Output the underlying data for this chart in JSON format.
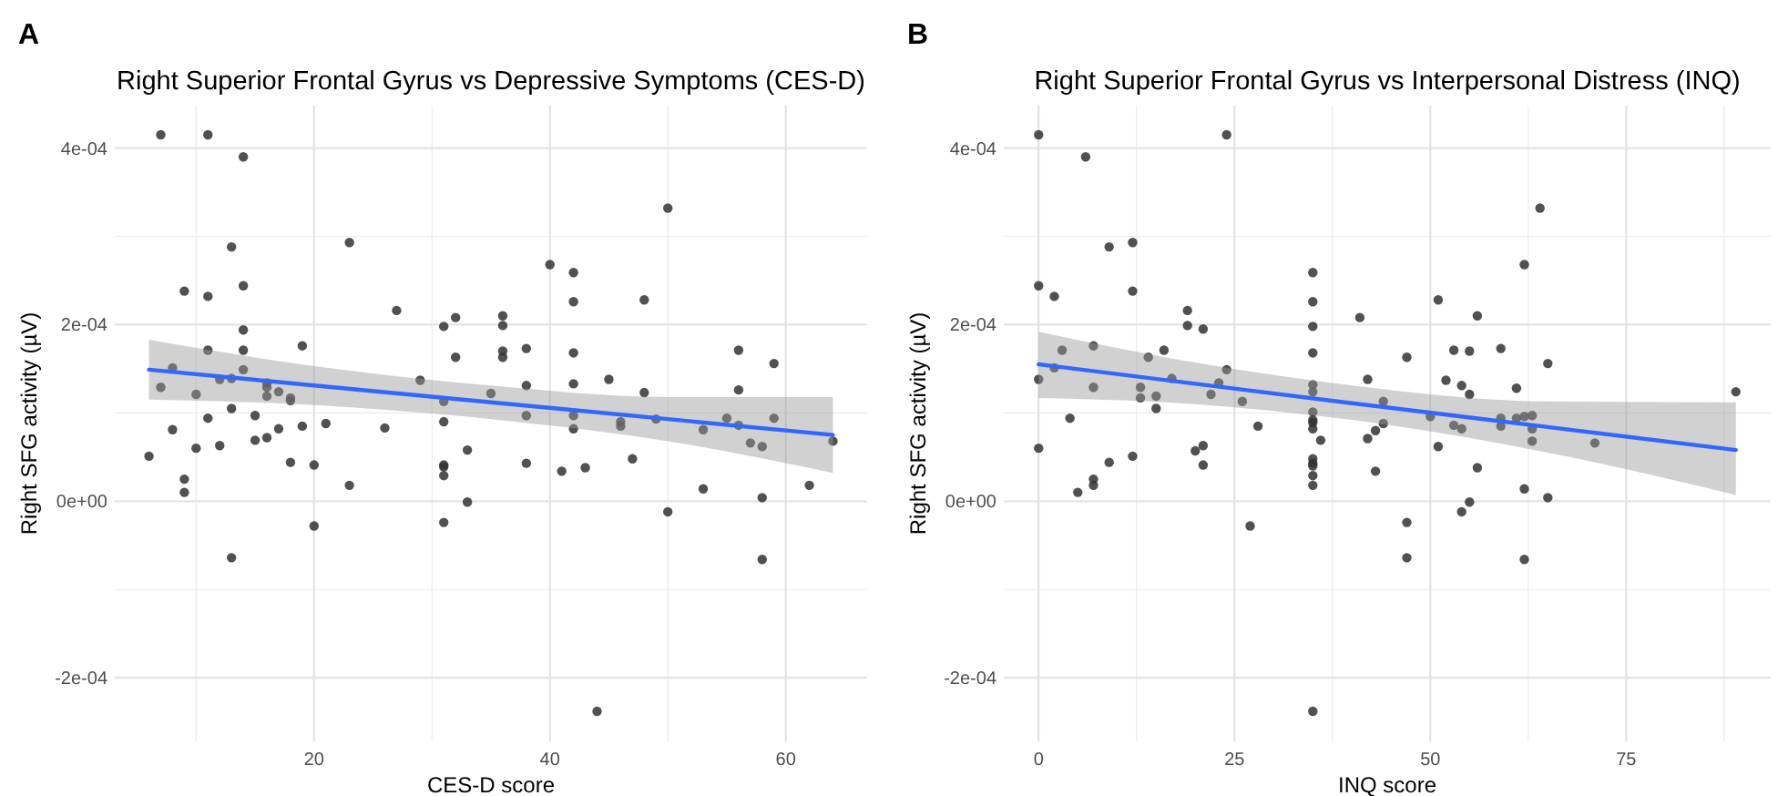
{
  "chart_data": [
    {
      "type": "scatter",
      "title": "Right Superior Frontal Gyrus vs Depressive Symptoms (CES-D)",
      "xlabel": "CES-D score",
      "ylabel": "Right SFG activity (µV)",
      "annotations": [
        "A"
      ],
      "grid": true,
      "xlim": [
        3.1,
        66.9
      ],
      "xticks": [
        20,
        40,
        60
      ],
      "ylim": [
        -0.000272,
        0.000448
      ],
      "yticks": [
        {
          "value": -0.0002,
          "label": "-2e-04"
        },
        {
          "value": 0,
          "label": "0e+00"
        },
        {
          "value": 0.0002,
          "label": "2e-04"
        },
        {
          "value": 0.0004,
          "label": "4e-04"
        }
      ],
      "series": [
        {
          "marker": "circle",
          "color": "#333333",
          "x": [
            7,
            11,
            14,
            50,
            13,
            23,
            40,
            42,
            9,
            11,
            14,
            42,
            48,
            27,
            36,
            36,
            31,
            32,
            14,
            11,
            14,
            19,
            32,
            36,
            36,
            38,
            42,
            56,
            59,
            8,
            14,
            7,
            12,
            13,
            16,
            16,
            17,
            18,
            18,
            10,
            16,
            29,
            31,
            35,
            38,
            42,
            45,
            48,
            56,
            13,
            11,
            15,
            8,
            17,
            19,
            21,
            26,
            31,
            38,
            42,
            42,
            46,
            46,
            49,
            55,
            56,
            53,
            59,
            57,
            58,
            64,
            6,
            10,
            12,
            15,
            16,
            18,
            20,
            33,
            38,
            41,
            43,
            47,
            31,
            31,
            31,
            9,
            9,
            23,
            53,
            58,
            62,
            33,
            31,
            20,
            50,
            13,
            58,
            44
          ],
          "values": [
            0.000415,
            0.000415,
            0.00039,
            0.000332,
            0.000288,
            0.000293,
            0.000268,
            0.000259,
            0.000238,
            0.000232,
            0.000244,
            0.000226,
            0.000228,
            0.000216,
            0.00021,
            0.000199,
            0.000198,
            0.000208,
            0.000194,
            0.000171,
            0.000171,
            0.000176,
            0.000163,
            0.00017,
            0.000163,
            0.000173,
            0.000168,
            0.000171,
            0.000156,
            0.000151,
            0.000149,
            0.000129,
            0.000138,
            0.000139,
            0.000134,
            0.000129,
            0.000124,
            0.000117,
            0.000114,
            0.000121,
            0.000119,
            0.000137,
            0.000113,
            0.000122,
            0.000131,
            0.000133,
            0.000138,
            0.000123,
            0.000126,
            0.000105,
            9.4e-05,
            9.7e-05,
            8.1e-05,
            8.2e-05,
            8.5e-05,
            8.8e-05,
            8.3e-05,
            9e-05,
            9.7e-05,
            9.7e-05,
            8.2e-05,
            8.5e-05,
            9e-05,
            9.3e-05,
            9.4e-05,
            8.6e-05,
            8.1e-05,
            9.4e-05,
            6.6e-05,
            6.2e-05,
            6.8e-05,
            5.1e-05,
            6e-05,
            6.3e-05,
            6.9e-05,
            7.2e-05,
            4.4e-05,
            4.1e-05,
            5.8e-05,
            4.3e-05,
            3.4e-05,
            3.8e-05,
            4.8e-05,
            4.1e-05,
            3.9e-05,
            2.9e-05,
            2.5e-05,
            1e-05,
            1.8e-05,
            1.4e-05,
            4e-06,
            1.8e-05,
            -1e-06,
            -2.4e-05,
            -2.8e-05,
            -1.2e-05,
            -6.4e-05,
            -6.6e-05,
            -0.000238
          ]
        },
        {
          "type": "line",
          "color": "#3366ff",
          "x": [
            6,
            20,
            35,
            50,
            64
          ],
          "values": [
            0.000149,
            0.000131,
            0.000112,
            9.3e-05,
            7.5e-05
          ],
          "lower": [
            0.000115,
            0.000109,
            9.3e-05,
            6.8e-05,
            3.2e-05
          ],
          "upper": [
            0.000183,
            0.000153,
            0.000131,
            0.000118,
            0.000118
          ]
        }
      ]
    },
    {
      "type": "scatter",
      "title": "Right Superior Frontal Gyrus vs Interpersonal Distress (INQ)",
      "xlabel": "INQ score",
      "ylabel": "Right SFG activity (µV)",
      "annotations": [
        "B"
      ],
      "grid": true,
      "xlim": [
        -4.45,
        93.45
      ],
      "xticks": [
        0,
        25,
        50,
        75
      ],
      "ylim": [
        -0.000272,
        0.000448
      ],
      "yticks": [
        {
          "value": -0.0002,
          "label": "-2e-04"
        },
        {
          "value": 0,
          "label": "0e+00"
        },
        {
          "value": 0.0002,
          "label": "2e-04"
        },
        {
          "value": 0.0004,
          "label": "4e-04"
        }
      ],
      "series": [
        {
          "marker": "circle",
          "color": "#333333",
          "x": [
            0,
            24,
            6,
            64,
            9,
            12,
            62,
            35,
            0,
            2,
            12,
            35,
            51,
            19,
            19,
            21,
            35,
            41,
            56,
            3,
            7,
            14,
            16,
            35,
            47,
            53,
            55,
            59,
            65,
            2,
            24,
            0,
            7,
            13,
            13,
            15,
            17,
            23,
            22,
            26,
            35,
            42,
            44,
            52,
            54,
            55,
            61,
            89,
            35,
            15,
            4,
            35,
            35,
            35,
            35,
            36,
            28,
            42,
            43,
            44,
            50,
            53,
            54,
            59,
            59,
            61,
            62,
            63,
            63,
            63,
            71,
            51,
            0,
            9,
            12,
            20,
            21,
            21,
            35,
            35,
            35,
            35,
            35,
            43,
            56,
            7,
            7,
            5,
            62,
            65,
            55,
            54,
            47,
            27,
            47,
            62,
            35
          ],
          "values": [
            0.000415,
            0.000415,
            0.00039,
            0.000332,
            0.000288,
            0.000293,
            0.000268,
            0.000259,
            0.000244,
            0.000232,
            0.000238,
            0.000226,
            0.000228,
            0.000216,
            0.000199,
            0.000195,
            0.000198,
            0.000208,
            0.00021,
            0.000171,
            0.000176,
            0.000163,
            0.000171,
            0.000168,
            0.000163,
            0.000171,
            0.00017,
            0.000173,
            0.000156,
            0.000151,
            0.000149,
            0.000138,
            0.000129,
            0.000129,
            0.000117,
            0.000119,
            0.000139,
            0.000134,
            0.000121,
            0.000113,
            0.000132,
            0.000138,
            0.000113,
            0.000137,
            0.000131,
            0.000121,
            0.000128,
            0.000124,
            0.000124,
            0.000105,
            9.4e-05,
            0.000101,
            9.2e-05,
            8.9e-05,
            8.2e-05,
            6.9e-05,
            8.5e-05,
            7.1e-05,
            8e-05,
            8.8e-05,
            9.6e-05,
            8.6e-05,
            8.2e-05,
            9.4e-05,
            8.5e-05,
            9.4e-05,
            9.6e-05,
            9.7e-05,
            8.2e-05,
            6.8e-05,
            6.6e-05,
            6.2e-05,
            6e-05,
            4.4e-05,
            5.1e-05,
            5.7e-05,
            6.3e-05,
            4.1e-05,
            4.8e-05,
            4.3e-05,
            4e-05,
            2.9e-05,
            1.8e-05,
            3.4e-05,
            3.8e-05,
            2.5e-05,
            1.8e-05,
            1e-05,
            1.4e-05,
            4e-06,
            -1e-06,
            -1.2e-05,
            -2.4e-05,
            -2.8e-05,
            -6.4e-05,
            -6.6e-05,
            -0.000238
          ]
        },
        {
          "type": "line",
          "color": "#3366ff",
          "x": [
            0,
            20,
            40,
            65,
            89
          ],
          "values": [
            0.000155,
            0.000133,
            0.000111,
            8.4e-05,
            5.8e-05
          ],
          "lower": [
            0.000117,
            0.00011,
            9.2e-05,
            5.5e-05,
            7e-06
          ],
          "upper": [
            0.000192,
            0.000157,
            0.000131,
            0.000113,
            0.000112
          ]
        }
      ]
    }
  ]
}
